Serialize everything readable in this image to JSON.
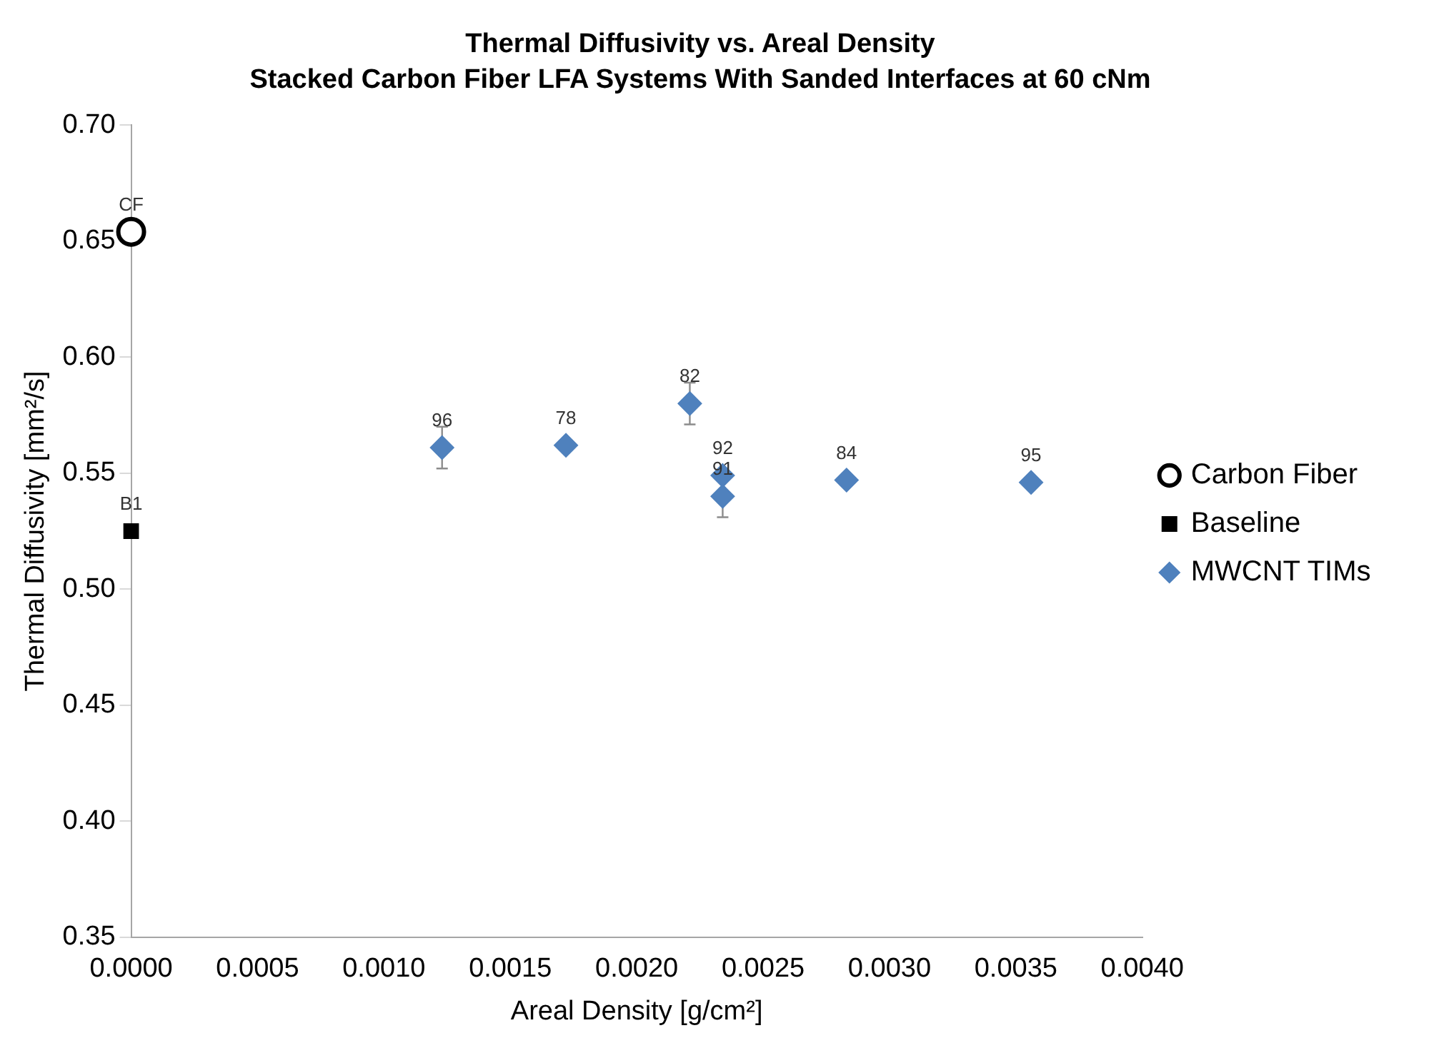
{
  "chart_data": {
    "type": "scatter",
    "title": "Thermal Diffusivity vs. Areal Density",
    "subtitle": "Stacked Carbon Fiber LFA Systems With Sanded Interfaces at 60 cNm",
    "xlabel": "Areal Density [g/cm²]",
    "ylabel": "Thermal Diffusivity [mm²/s]",
    "series": [
      {
        "name": "Carbon Fiber",
        "color": "#000000",
        "marker": "circle",
        "x": [
          0
        ],
        "values": [
          0.654
        ]
      },
      {
        "name": "Baseline",
        "color": "#000000",
        "marker": "square",
        "x": [
          0
        ],
        "values": [
          0.525
        ]
      },
      {
        "name": "MWCNT TIMs",
        "color": "#4f81bd",
        "marker": "diamond",
        "x": [
          0.00123,
          0.00172,
          0.00221,
          0.00234,
          0.00234,
          0.00283,
          0.00356
        ],
        "values": [
          0.561,
          0.562,
          0.58,
          0.549,
          0.54,
          0.547,
          0.546
        ],
        "errors": [
          0.009,
          null,
          0.009,
          null,
          0.009,
          null,
          null
        ]
      }
    ],
    "annotations": [
      {
        "text": "CF",
        "x": 0,
        "y": 0.654
      },
      {
        "text": "B1",
        "x": 0,
        "y": 0.525
      },
      {
        "text": "96",
        "x": 0.00123,
        "y": 0.561
      },
      {
        "text": "78",
        "x": 0.00172,
        "y": 0.562
      },
      {
        "text": "82",
        "x": 0.00221,
        "y": 0.58
      },
      {
        "text": "92",
        "x": 0.00234,
        "y": 0.549
      },
      {
        "text": "91",
        "x": 0.00234,
        "y": 0.54
      },
      {
        "text": "84",
        "x": 0.00283,
        "y": 0.547
      },
      {
        "text": "95",
        "x": 0.00356,
        "y": 0.546
      }
    ],
    "xlim": [
      0,
      0.004
    ],
    "xticks": [
      {
        "value": 0,
        "label": "0.0000"
      },
      {
        "value": 0.0005,
        "label": "0.0005"
      },
      {
        "value": 0.001,
        "label": "0.0010"
      },
      {
        "value": 0.0015,
        "label": "0.0015"
      },
      {
        "value": 0.002,
        "label": "0.0020"
      },
      {
        "value": 0.0025,
        "label": "0.0025"
      },
      {
        "value": 0.003,
        "label": "0.0030"
      },
      {
        "value": 0.0035,
        "label": "0.0035"
      },
      {
        "value": 0.004,
        "label": "0.0040"
      }
    ],
    "ylim": [
      0.35,
      0.7
    ],
    "yticks": [
      {
        "value": 0.35,
        "label": "0.35"
      },
      {
        "value": 0.4,
        "label": "0.40"
      },
      {
        "value": 0.45,
        "label": "0.45"
      },
      {
        "value": 0.5,
        "label": "0.50"
      },
      {
        "value": 0.55,
        "label": "0.55"
      },
      {
        "value": 0.6,
        "label": "0.60"
      },
      {
        "value": 0.65,
        "label": "0.65"
      },
      {
        "value": 0.7,
        "label": "0.70"
      }
    ],
    "grid": false,
    "legend": "right"
  }
}
